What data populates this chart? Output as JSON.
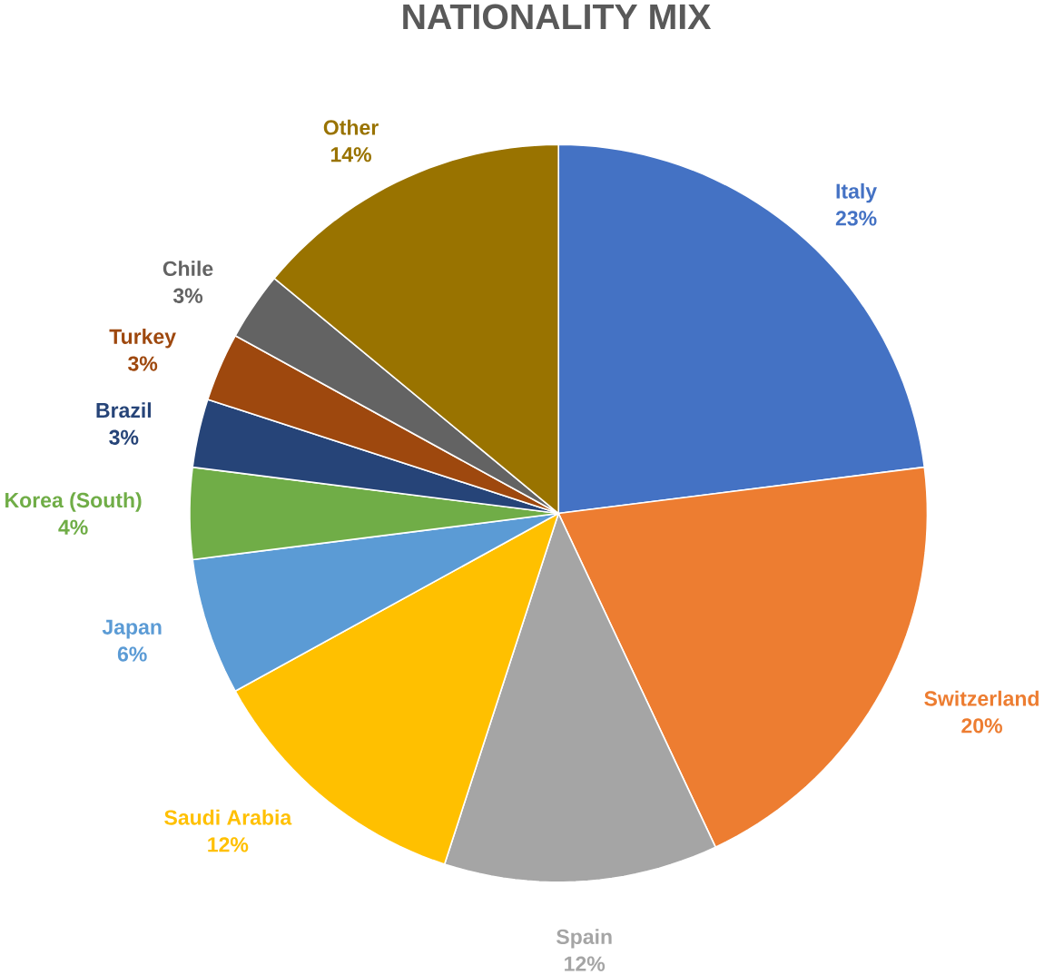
{
  "chart_data": {
    "type": "pie",
    "title": "NATIONALITY MIX",
    "categories": [
      "Italy",
      "Switzerland",
      "Spain",
      "Saudi Arabia",
      "Japan",
      "Korea (South)",
      "Brazil",
      "Turkey",
      "Chile",
      "Other"
    ],
    "values": [
      23,
      20,
      12,
      12,
      6,
      4,
      3,
      3,
      3,
      14
    ],
    "value_labels": [
      "23%",
      "20%",
      "12%",
      "12%",
      "6%",
      "4%",
      "3%",
      "3%",
      "3%",
      "14%"
    ],
    "colors": [
      "#4472c4",
      "#ed7d31",
      "#a5a5a5",
      "#ffc000",
      "#5b9bd5",
      "#70ad47",
      "#264478",
      "#9e480e",
      "#636363",
      "#997300"
    ]
  }
}
